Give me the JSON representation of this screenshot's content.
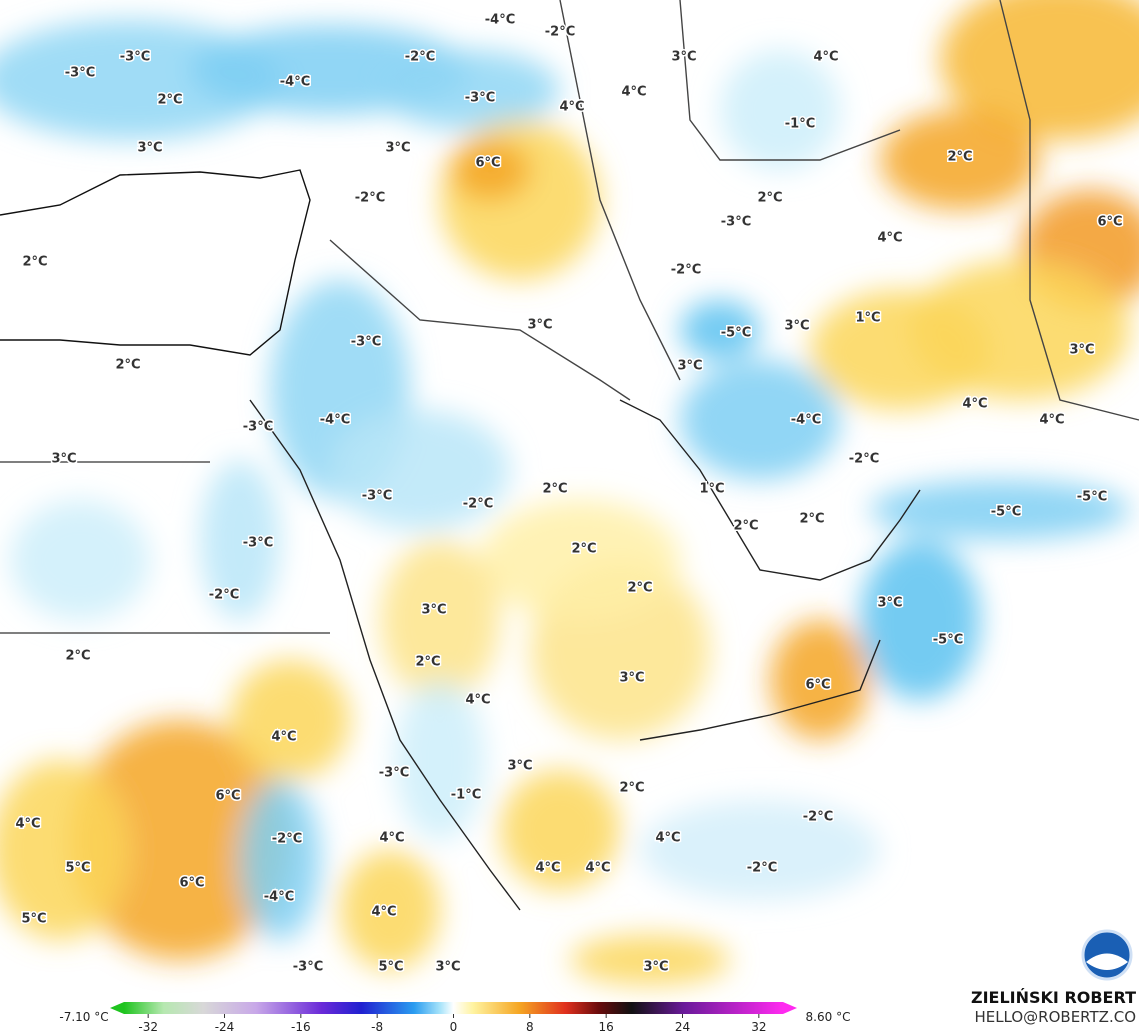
{
  "map": {
    "labels": [
      "-4°C",
      "-2°C",
      "-3°C",
      "-2°C",
      "3°C",
      "4°C",
      "-3°C",
      "-4°C",
      "2°C",
      "-3°C",
      "4°C",
      "4°C",
      "-1°C",
      "3°C",
      "3°C",
      "6°C",
      "2°C",
      "-2°C",
      "2°C",
      "-3°C",
      "6°C",
      "4°C",
      "2°C",
      "-2°C",
      "3°C",
      "-5°C",
      "3°C",
      "1°C",
      "-3°C",
      "2°C",
      "3°C",
      "3°C",
      "-4°C",
      "-4°C",
      "4°C",
      "4°C",
      "-3°C",
      "3°C",
      "-2°C",
      "2°C",
      "1°C",
      "-3°C",
      "-2°C",
      "-5°C",
      "-5°C",
      "2°C",
      "2°C",
      "-3°C",
      "2°C",
      "2°C",
      "-2°C",
      "3°C",
      "3°C",
      "-5°C",
      "2°C",
      "2°C",
      "3°C",
      "6°C",
      "4°C",
      "4°C",
      "-3°C",
      "3°C",
      "-1°C",
      "2°C",
      "6°C",
      "-2°C",
      "4°C",
      "-2°C",
      "4°C",
      "4°C",
      "5°C",
      "-2°C",
      "4°C",
      "4°C",
      "6°C",
      "-4°C",
      "4°C",
      "5°C",
      "-3°C",
      "5°C",
      "3°C",
      "3°C"
    ]
  },
  "colorbar": {
    "min_label": "-7.10 °C",
    "max_label": "8.60 °C",
    "range": [
      -36,
      36
    ],
    "ticks": [
      -32,
      -24,
      -16,
      -8,
      0,
      8,
      16,
      24,
      32
    ]
  },
  "credit": {
    "author": "ZIELIŃSKI ROBERT",
    "contact": "HELLO@ROBERTZ.CO"
  }
}
